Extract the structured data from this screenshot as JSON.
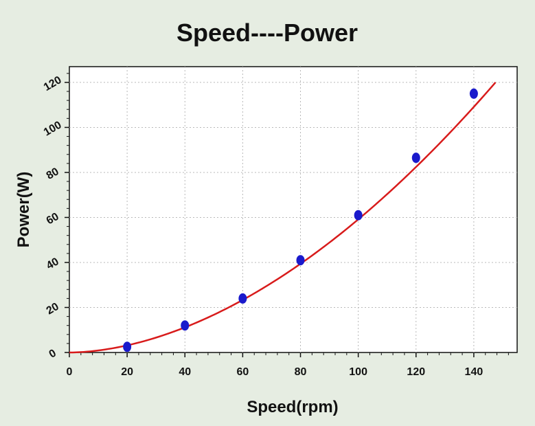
{
  "chart_data": {
    "type": "scatter",
    "title": "Speed----Power",
    "xlabel": "Speed(rpm)",
    "ylabel": "Power(W)",
    "xlim": [
      0,
      155
    ],
    "ylim": [
      0,
      127
    ],
    "x_ticks": [
      0,
      20,
      40,
      60,
      80,
      100,
      120,
      140
    ],
    "y_ticks": [
      0,
      20,
      40,
      60,
      80,
      100,
      120
    ],
    "x_tick_labels": [
      "0",
      "20",
      "40",
      "60",
      "80",
      "100",
      "120",
      "140"
    ],
    "y_tick_labels": [
      "0",
      "20",
      "40",
      "60",
      "80",
      "100",
      "120"
    ],
    "grid": true,
    "series": [
      {
        "kind": "points",
        "x": [
          20,
          40,
          60,
          80,
          100,
          120,
          140
        ],
        "y": [
          2.5,
          12,
          24,
          41,
          61,
          86.5,
          115
        ]
      },
      {
        "kind": "fit-curve",
        "model": "a*x^b",
        "coefficients": {
          "a": 0.01355,
          "b": 1.82
        },
        "x_range": [
          0,
          147.5
        ]
      }
    ],
    "colors": {
      "background": "#e6ede2",
      "plot_background": "#ffffff",
      "points": "#1a1acc",
      "curve": "#d81b1b",
      "grid": "#b8b8b8"
    }
  }
}
